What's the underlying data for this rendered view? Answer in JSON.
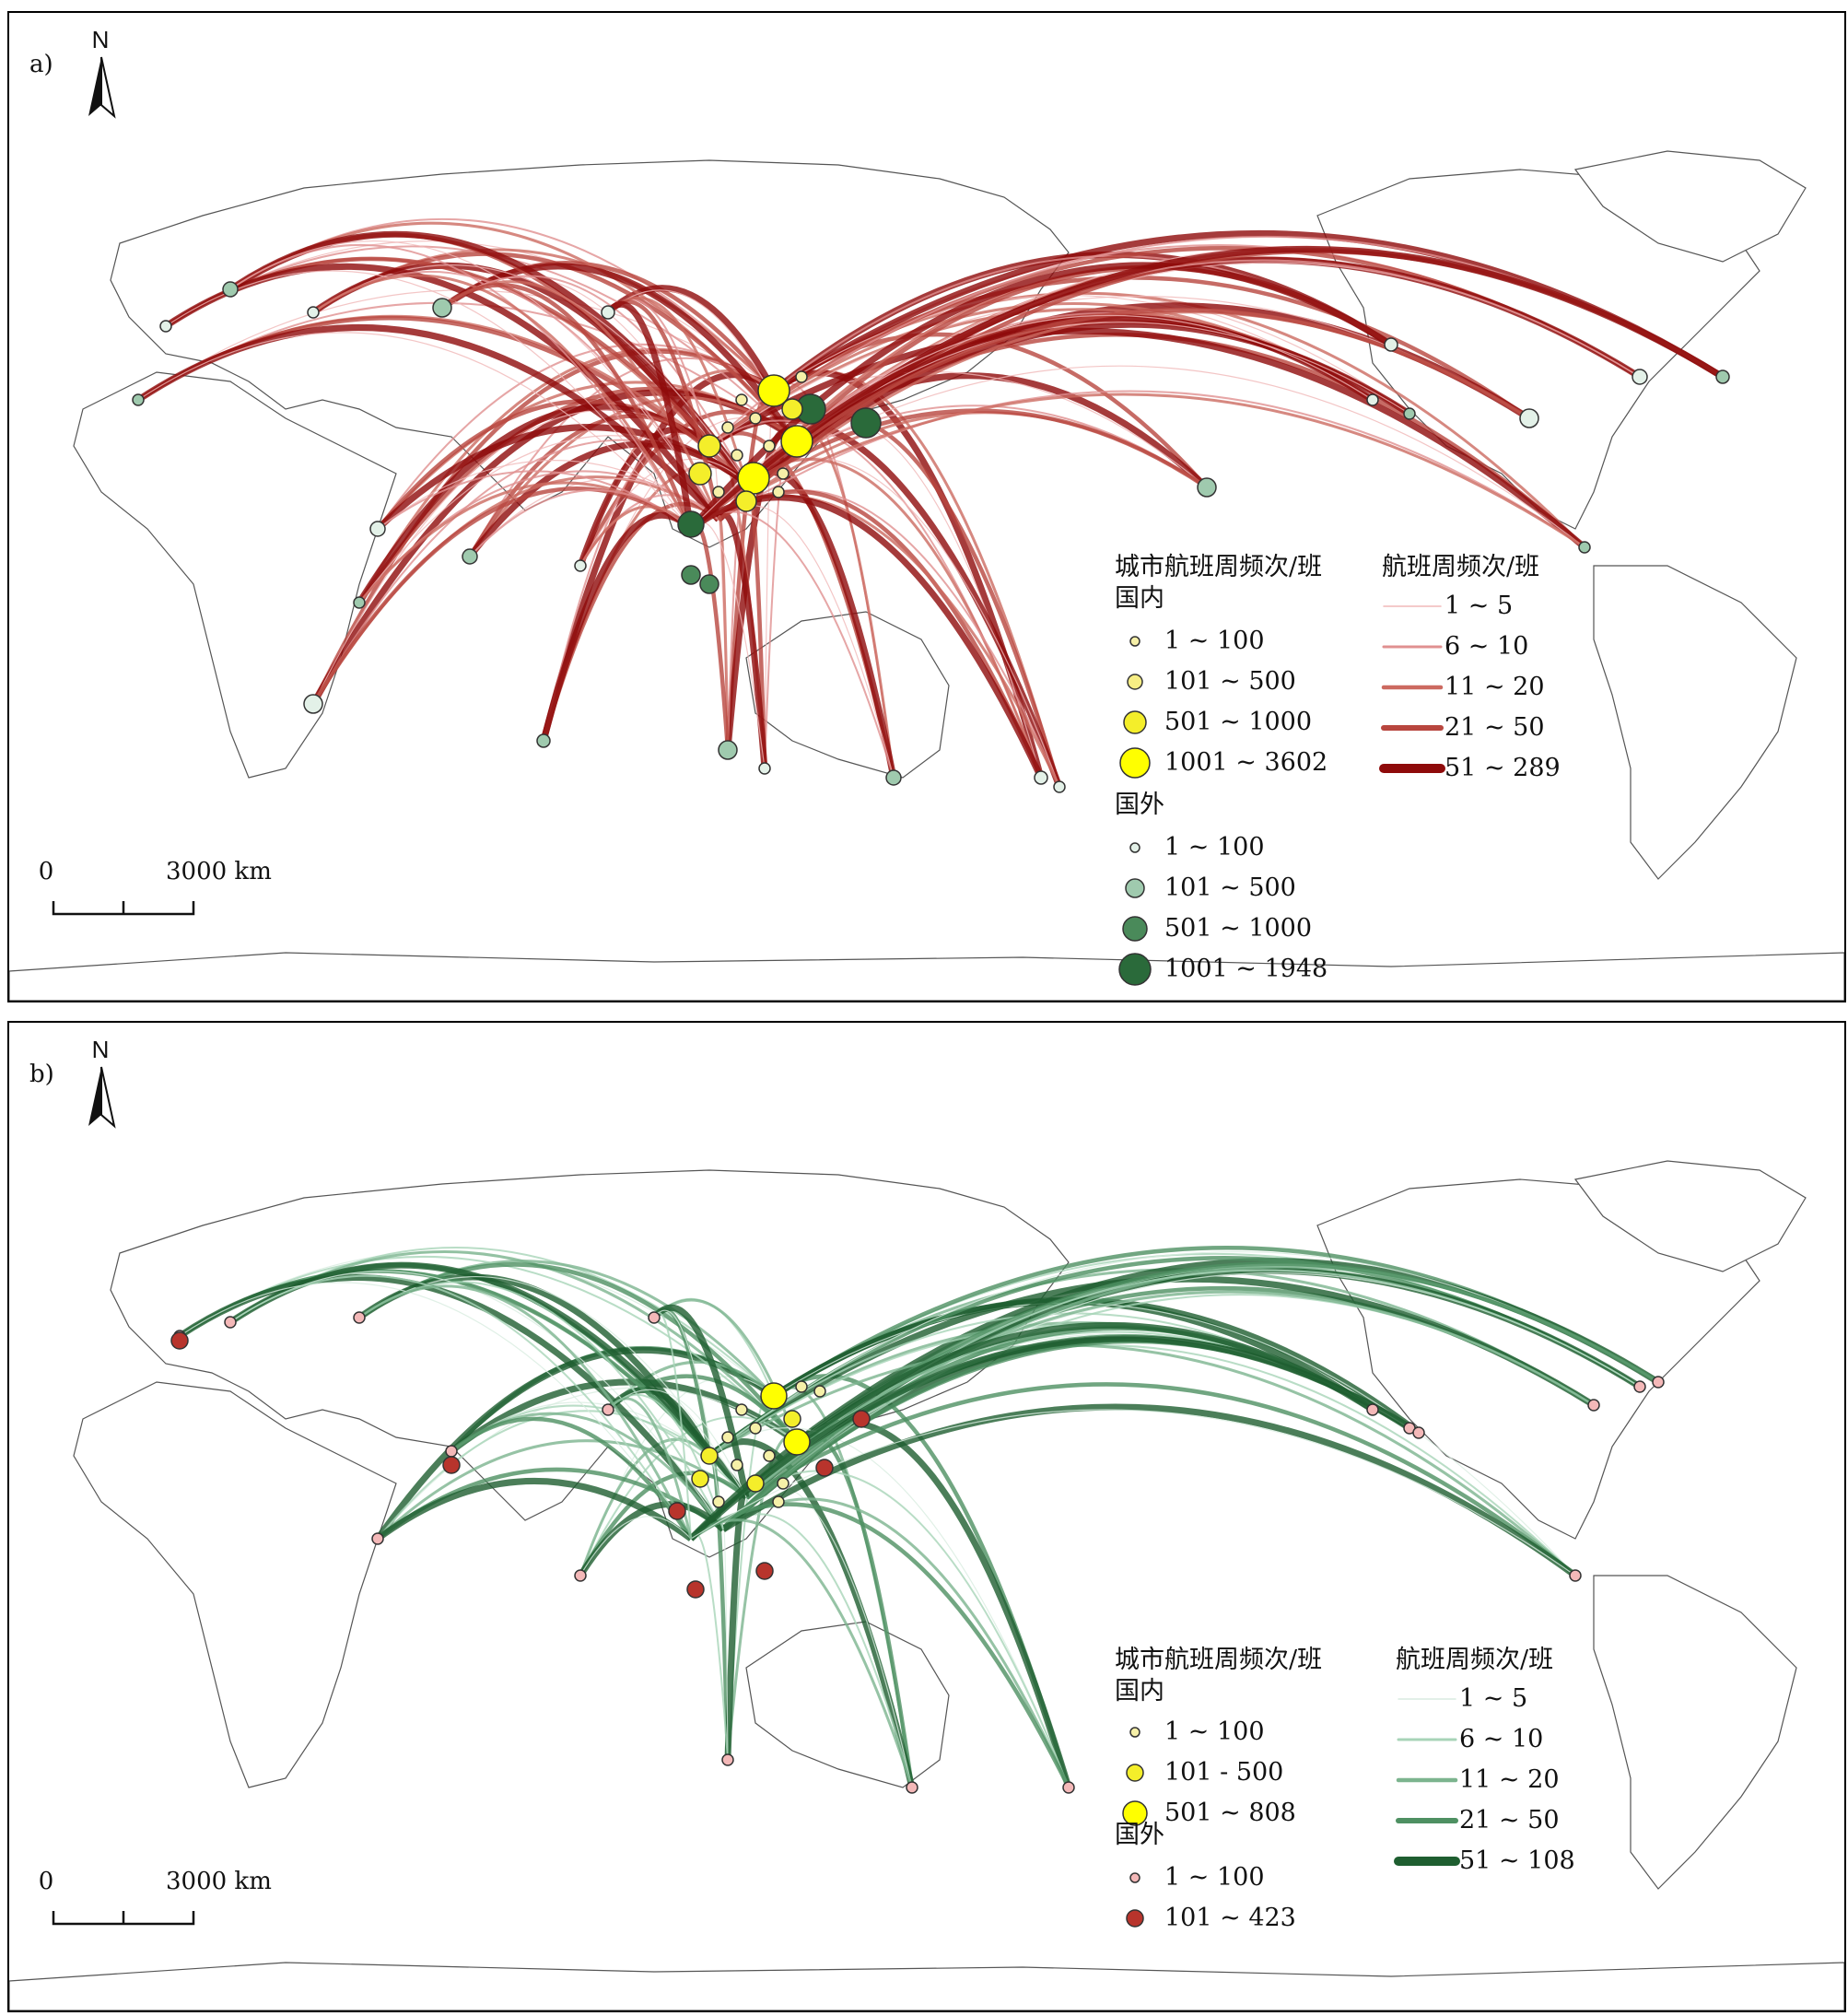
{
  "panel_a": {
    "label": "a)",
    "north": "N",
    "scale": {
      "zero": "0",
      "distance": "3000 km"
    },
    "legend_nodes": {
      "title": "城市航班周频次/班",
      "domestic_title": "国内",
      "domestic": [
        {
          "label": "1 ~ 100",
          "color": "#f6f0a8"
        },
        {
          "label": "101 ~ 500",
          "color": "#f7ee84"
        },
        {
          "label": "501 ~ 1000",
          "color": "#f4ee2a"
        },
        {
          "label": "1001 ~ 3602",
          "color": "#ffff00"
        }
      ],
      "foreign_title": "国外",
      "foreign": [
        {
          "label": "1 ~ 100",
          "color": "#e3f1e8"
        },
        {
          "label": "101 ~ 500",
          "color": "#9fcaae"
        },
        {
          "label": "501 ~ 1000",
          "color": "#4a8a5a"
        },
        {
          "label": "1001 ~ 1948",
          "color": "#2a6a3a"
        }
      ]
    },
    "legend_lines": {
      "title": "航班周频次/班",
      "items": [
        {
          "label": "1 ~ 5",
          "color": "#f0b8b8"
        },
        {
          "label": "6 ~ 10",
          "color": "#e09090"
        },
        {
          "label": "11 ~ 20",
          "color": "#cc6a60"
        },
        {
          "label": "21 ~ 50",
          "color": "#b8463e"
        },
        {
          "label": "51 ~ 289",
          "color": "#8e0a0a"
        }
      ]
    }
  },
  "panel_b": {
    "label": "b)",
    "north": "N",
    "scale": {
      "zero": "0",
      "distance": "3000 km"
    },
    "legend_nodes": {
      "title": "城市航班周频次/班",
      "domestic_title": "国内",
      "domestic": [
        {
          "label": "1 ~ 100",
          "color": "#f6f0a8"
        },
        {
          "label": "101 - 500",
          "color": "#f4ee2a"
        },
        {
          "label": "501 ~ 808",
          "color": "#ffff00"
        }
      ],
      "foreign_title": "国外",
      "foreign": [
        {
          "label": "1 ~ 100",
          "color": "#f4b8b8"
        },
        {
          "label": "101 ~ 423",
          "color": "#b8342c"
        }
      ]
    },
    "legend_lines": {
      "title": "航班周频次/班",
      "items": [
        {
          "label": "1 ~ 5",
          "color": "#d8ece0"
        },
        {
          "label": "6 ~ 10",
          "color": "#a8d4b8"
        },
        {
          "label": "11 ~ 20",
          "color": "#7cb48e"
        },
        {
          "label": "21 ~ 50",
          "color": "#4e9062"
        },
        {
          "label": "51 ~ 108",
          "color": "#1e5e30"
        }
      ]
    }
  }
}
